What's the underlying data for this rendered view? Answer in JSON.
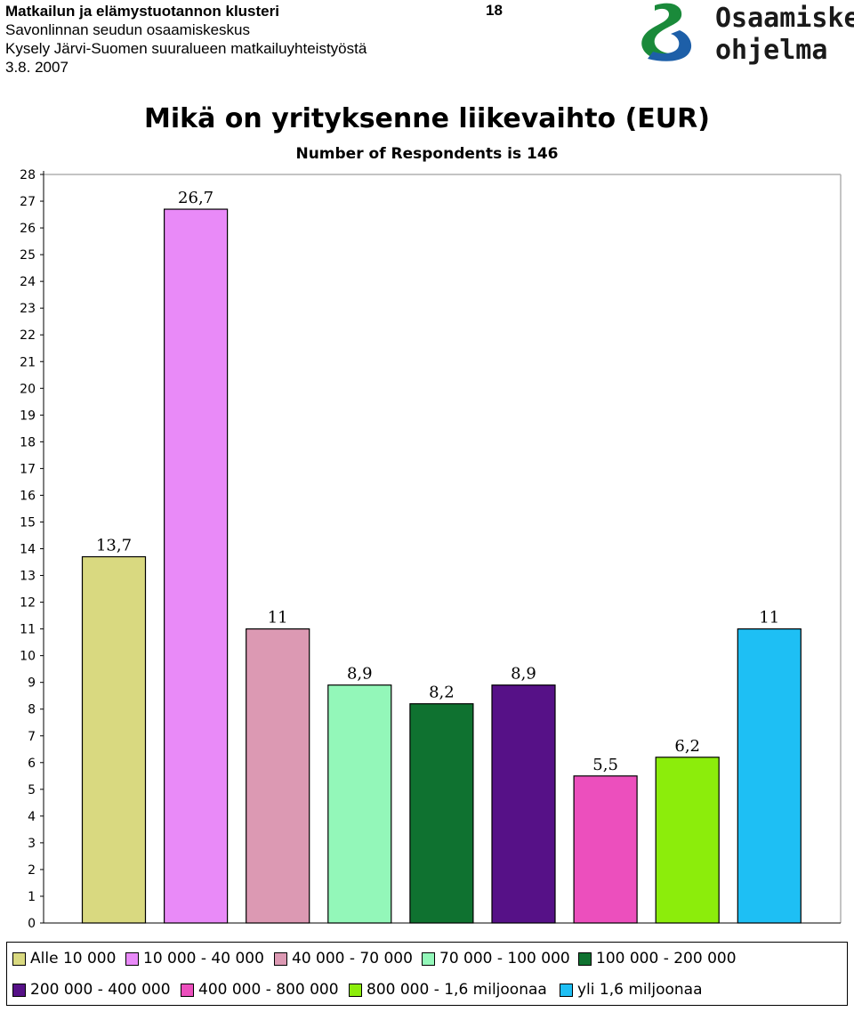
{
  "header": {
    "line1": "Matkailun ja elämystuotannon klusteri",
    "line2": "Savonlinnan seudun osaamiskeskus",
    "line3": "Kysely Järvi-Suomen suuralueen matkailuyhteistyöstä",
    "line4": "3.8. 2007",
    "page_number": "18"
  },
  "logo": {
    "line1": "Osaamiskeskus-",
    "line2": "ohjelma",
    "colors": [
      "#1a8a3a",
      "#1d5fa8"
    ]
  },
  "chart_data": {
    "type": "bar",
    "title": "Mikä on yrityksenne liikevaihto (EUR)",
    "subtitle": "Number of Respondents is 146",
    "categories": [
      "Alle 10 000",
      "10 000 - 40 000",
      "40 000 - 70 000",
      "70 000 - 100 000",
      "100 000 - 200 000",
      "200 000 - 400 000",
      "400 000 - 800 000",
      "800 000 - 1,6 miljoonaa",
      "yli 1,6 miljoonaa"
    ],
    "values": [
      13.7,
      26.7,
      11,
      8.9,
      8.2,
      8.9,
      5.5,
      6.2,
      11
    ],
    "value_labels": [
      "13,7",
      "26,7",
      "11",
      "8,9",
      "8,2",
      "8,9",
      "5,5",
      "6,2",
      "11"
    ],
    "colors": [
      "#d9d980",
      "#e98af8",
      "#dc99b3",
      "#93f7b9",
      "#0f7230",
      "#561187",
      "#ec4fbd",
      "#8ced0b",
      "#1ebff4"
    ],
    "ylim": [
      0,
      28
    ],
    "yticks": [
      "0",
      "1",
      "2",
      "3",
      "4",
      "5",
      "6",
      "7",
      "8",
      "9",
      "10",
      "11",
      "12",
      "13",
      "14",
      "15",
      "16",
      "17",
      "18",
      "19",
      "20",
      "21",
      "22",
      "23",
      "24",
      "25",
      "26",
      "27",
      "28"
    ],
    "grid": false,
    "legend": "bottom"
  }
}
